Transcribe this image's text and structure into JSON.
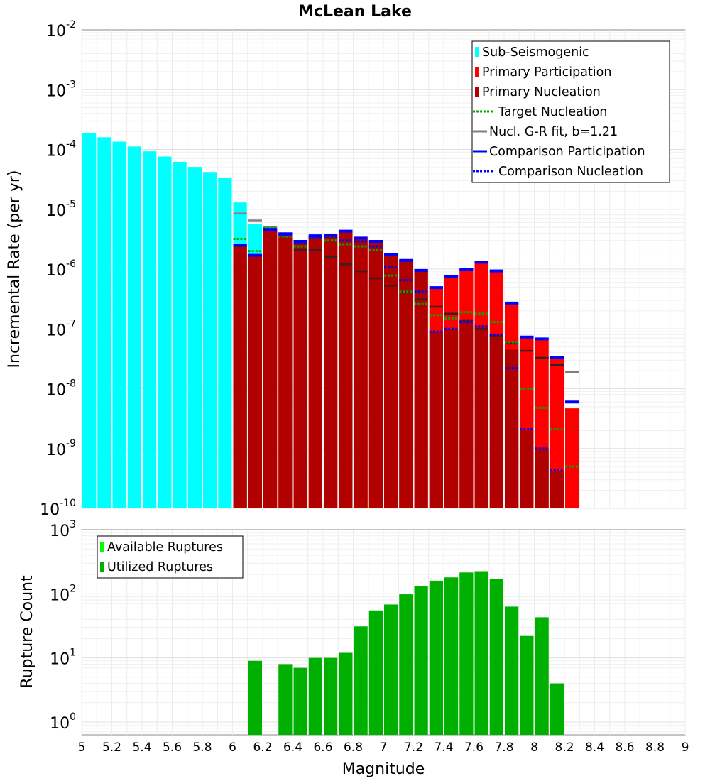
{
  "chart_data": [
    {
      "id": "top",
      "type": "bar",
      "title": "McLean Lake",
      "xlabel": "",
      "ylabel": "Incremental Rate (per yr)",
      "xlim": [
        5,
        9
      ],
      "ylim_log10": [
        -10,
        -2
      ],
      "yscale": "log",
      "bin_width": 0.1,
      "y_ticks": [
        {
          "base": "10",
          "exp": "-2"
        },
        {
          "base": "10",
          "exp": "-3"
        },
        {
          "base": "10",
          "exp": "-4"
        },
        {
          "base": "10",
          "exp": "-5"
        },
        {
          "base": "10",
          "exp": "-6"
        },
        {
          "base": "10",
          "exp": "-7"
        },
        {
          "base": "10",
          "exp": "-8"
        },
        {
          "base": "10",
          "exp": "-9"
        },
        {
          "base": "10",
          "exp": "-10"
        }
      ],
      "legend": {
        "placement": "top-right",
        "entries": [
          {
            "label": "Sub-Seismogenic",
            "style": "box",
            "color": "#00ffff"
          },
          {
            "label": "Primary Participation",
            "style": "box",
            "color": "#ff0000"
          },
          {
            "label": "Primary Nucleation",
            "style": "box",
            "color": "#b00000"
          },
          {
            "label": "Target Nucleation",
            "style": "dotted",
            "color": "#00aa00"
          },
          {
            "label": "Nucl. G-R fit, b=1.21",
            "style": "line",
            "color": "#808080"
          },
          {
            "label": "Comparison Participation",
            "style": "line",
            "color": "#0000ff"
          },
          {
            "label": "Comparison Nucleation",
            "style": "dotted",
            "color": "#0000ff"
          }
        ]
      },
      "series": [
        {
          "name": "Sub-Seismogenic",
          "kind": "bar",
          "color": "#00ffff",
          "x": [
            5.05,
            5.15,
            5.25,
            5.35,
            5.45,
            5.55,
            5.65,
            5.75,
            5.85,
            5.95,
            6.05,
            6.15
          ],
          "values": [
            0.00019,
            0.00016,
            0.000135,
            0.000112,
            9.3e-05,
            7.6e-05,
            6.2e-05,
            5.1e-05,
            4.2e-05,
            3.4e-05,
            1.3e-05,
            5.7e-06
          ]
        },
        {
          "name": "Primary Participation",
          "kind": "bar",
          "color": "#ff0000",
          "x": [
            6.05,
            6.15,
            6.25,
            6.35,
            6.45,
            6.55,
            6.65,
            6.75,
            6.85,
            6.95,
            7.05,
            7.15,
            7.25,
            7.35,
            7.45,
            7.55,
            7.65,
            7.75,
            7.85,
            7.95,
            8.05,
            8.15,
            8.25
          ],
          "values": [
            2.5e-06,
            1.65e-06,
            4.5e-06,
            3.8e-06,
            2.8e-06,
            3.5e-06,
            3.6e-06,
            4.2e-06,
            3.2e-06,
            2.8e-06,
            1.7e-06,
            1.35e-06,
            9.5e-07,
            4.8e-07,
            7.5e-07,
            1e-06,
            1.3e-06,
            9.2e-07,
            2.7e-07,
            7.2e-08,
            6.6e-08,
            3.2e-08,
            4.7e-09
          ]
        },
        {
          "name": "Primary Nucleation",
          "kind": "bar",
          "color": "#b00000",
          "x": [
            6.05,
            6.15,
            6.25,
            6.35,
            6.45,
            6.55,
            6.65,
            6.75,
            6.85,
            6.95,
            7.05,
            7.15,
            7.25,
            7.35,
            7.45,
            7.55,
            7.65,
            7.75,
            7.85,
            7.95,
            8.05,
            8.15,
            8.25
          ],
          "values": [
            2.5e-06,
            1.65e-06,
            4.5e-06,
            3.8e-06,
            2.8e-06,
            3.5e-06,
            3.6e-06,
            4.2e-06,
            3.2e-06,
            2.8e-06,
            1.7e-06,
            1.35e-06,
            9.5e-07,
            9e-08,
            1e-07,
            1.3e-07,
            1.1e-07,
            8e-08,
            4.5e-08,
            2e-09,
            1e-09,
            4.2e-10,
            1e-10
          ]
        },
        {
          "name": "Target Nucleation",
          "kind": "marker",
          "dash": "dotted",
          "color": "#00aa00",
          "x": [
            6.05,
            6.15,
            6.25,
            6.35,
            6.45,
            6.55,
            6.65,
            6.75,
            6.85,
            6.95,
            7.05,
            7.15,
            7.25,
            7.35,
            7.45,
            7.55,
            7.65,
            7.75,
            7.85,
            7.95,
            8.05,
            8.15,
            8.25
          ],
          "values": [
            3.2e-06,
            2e-06,
            4.9e-06,
            3.5e-06,
            2.4e-06,
            3.4e-06,
            3e-06,
            2.6e-06,
            2.4e-06,
            2.1e-06,
            7.8e-07,
            4.2e-07,
            2.6e-07,
            1.7e-07,
            1.5e-07,
            1.9e-07,
            1.8e-07,
            1.3e-07,
            6e-08,
            1e-08,
            4.8e-09,
            2.1e-09,
            5e-10
          ]
        },
        {
          "name": "Nucl. G-R fit, b=1.21",
          "kind": "marker",
          "dash": "solid",
          "color": "#808080",
          "x": [
            6.05,
            6.15,
            6.25,
            6.35,
            6.45,
            6.55,
            6.65,
            6.75,
            6.85,
            6.95,
            7.05,
            7.15,
            7.25,
            7.35,
            7.45,
            7.55,
            7.65,
            7.75,
            7.85,
            7.95,
            8.05,
            8.15,
            8.25
          ],
          "values": [
            8.5e-06,
            6.5e-06,
            5e-06,
            3.9e-06,
            2.1e-06,
            2.1e-06,
            1.6e-06,
            1.2e-06,
            9.2e-07,
            7e-07,
            5.3e-07,
            4.1e-07,
            3.1e-07,
            2.35e-07,
            1.8e-07,
            1.4e-07,
            1e-07,
            7.5e-08,
            5.7e-08,
            4.3e-08,
            3.3e-08,
            2.5e-08,
            1.9e-08
          ]
        },
        {
          "name": "Comparison Participation",
          "kind": "marker",
          "dash": "solid",
          "color": "#0000ff",
          "x": [
            6.05,
            6.15,
            6.25,
            6.35,
            6.45,
            6.55,
            6.65,
            6.75,
            6.85,
            6.95,
            7.05,
            7.15,
            7.25,
            7.35,
            7.45,
            7.55,
            7.65,
            7.75,
            7.85,
            7.95,
            8.05,
            8.15,
            8.25
          ],
          "values": [
            2.5e-06,
            1.7e-06,
            4.6e-06,
            3.9e-06,
            2.9e-06,
            3.6e-06,
            3.7e-06,
            4.3e-06,
            3.3e-06,
            2.9e-06,
            1.75e-06,
            1.4e-06,
            9.5e-07,
            4.9e-07,
            7.6e-07,
            1e-06,
            1.3e-06,
            9.3e-07,
            2.7e-07,
            7.3e-08,
            6.8e-08,
            3.3e-08,
            6e-09
          ]
        },
        {
          "name": "Comparison Nucleation",
          "kind": "marker",
          "dash": "dotted",
          "color": "#0000ff",
          "x": [
            6.05,
            6.15,
            6.25,
            6.35,
            6.45,
            6.55,
            6.65,
            6.75,
            6.85,
            6.95,
            7.05,
            7.15,
            7.25,
            7.35,
            7.45,
            7.55,
            7.65,
            7.75,
            7.85,
            7.95,
            8.05,
            8.15
          ],
          "values": [
            2.5e-06,
            1.7e-06,
            4.5e-06,
            3.7e-06,
            2.8e-06,
            3.4e-06,
            3.5e-06,
            3e-06,
            2.9e-06,
            2.4e-06,
            1.1e-06,
            6.5e-07,
            4.2e-07,
            9e-08,
            1e-07,
            1.3e-07,
            1.1e-07,
            8e-08,
            2.2e-08,
            2.1e-09,
            1e-09,
            4.3e-10
          ]
        }
      ]
    },
    {
      "id": "bottom",
      "type": "bar",
      "title": "",
      "xlabel": "Magnitude",
      "ylabel": "Rupture Count",
      "xlim": [
        5,
        9
      ],
      "ylim_log10": [
        -0.2,
        3
      ],
      "yscale": "log",
      "bin_width": 0.1,
      "y_ticks": [
        {
          "base": "10",
          "exp": "3"
        },
        {
          "base": "10",
          "exp": "2"
        },
        {
          "base": "10",
          "exp": "1"
        },
        {
          "base": "10",
          "exp": "0"
        }
      ],
      "x_ticks": [
        "5",
        "5.2",
        "5.4",
        "5.6",
        "5.8",
        "6",
        "6.2",
        "6.4",
        "6.6",
        "6.8",
        "7",
        "7.2",
        "7.4",
        "7.6",
        "7.8",
        "8",
        "8.2",
        "8.4",
        "8.6",
        "8.8",
        "9"
      ],
      "legend": {
        "placement": "top-left",
        "entries": [
          {
            "label": "Available Ruptures",
            "style": "box",
            "color": "#00ff00"
          },
          {
            "label": "Utilized Ruptures",
            "style": "box",
            "color": "#00b000"
          }
        ]
      },
      "series": [
        {
          "name": "Utilized Ruptures",
          "kind": "bar",
          "color": "#00b000",
          "x": [
            6.15,
            6.35,
            6.45,
            6.55,
            6.65,
            6.75,
            6.85,
            6.95,
            7.05,
            7.15,
            7.25,
            7.35,
            7.45,
            7.55,
            7.65,
            7.75,
            7.85,
            7.95,
            8.05,
            8.15
          ],
          "values": [
            9,
            8,
            7,
            10,
            10,
            12,
            31,
            55,
            68,
            98,
            130,
            160,
            180,
            215,
            225,
            170,
            63,
            22,
            43,
            4
          ]
        }
      ]
    }
  ]
}
